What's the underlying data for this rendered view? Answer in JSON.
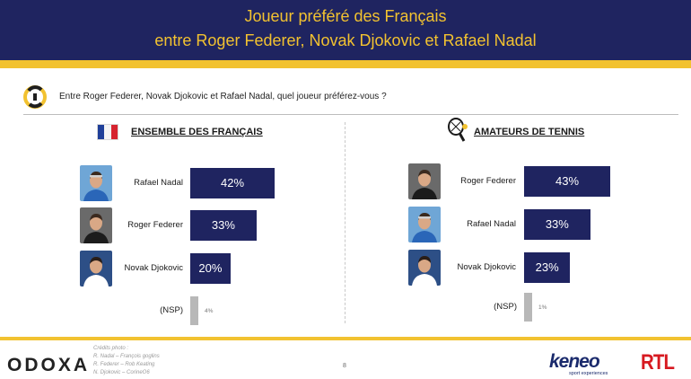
{
  "header": {
    "title_line1": "Joueur préféré des Français",
    "title_line2": "entre Roger Federer, Novak Djokovic et Rafael Nadal"
  },
  "question": "Entre Roger Federer, Novak Djokovic et Rafael Nadal, quel joueur préférez-vous ?",
  "colors": {
    "navy": "#1f2460",
    "gold": "#f2c230",
    "nsp_gray": "#b8b8b8"
  },
  "icons": [
    "odoxa-question-logo-icon",
    "french-flag-icon",
    "tennis-racket-icon"
  ],
  "chart_data": [
    {
      "type": "bar",
      "orientation": "horizontal",
      "title": "ENSEMBLE DES FRANÇAIS",
      "categories": [
        "Rafael Nadal",
        "Roger Federer",
        "Novak Djokovic",
        "(NSP)"
      ],
      "values": [
        42,
        33,
        20,
        4
      ],
      "labels": [
        "42%",
        "33%",
        "20%",
        "4%"
      ],
      "unit": "%"
    },
    {
      "type": "bar",
      "orientation": "horizontal",
      "title": "AMATEURS DE TENNIS",
      "categories": [
        "Roger Federer",
        "Rafael Nadal",
        "Novak Djokovic",
        "(NSP)"
      ],
      "values": [
        43,
        33,
        23,
        1
      ],
      "labels": [
        "43%",
        "33%",
        "23%",
        "1%"
      ],
      "unit": "%"
    }
  ],
  "footer": {
    "odoxa": "ODOXA",
    "credits": [
      "Crédits photo :",
      "R. Nadal – François goglins",
      "R. Federer – Rob Keating",
      "N. Djokovic – CorineO6"
    ],
    "page": "8",
    "keneo": "keneo",
    "keneo_sub": "sport experiences",
    "rtl": "RTL"
  }
}
